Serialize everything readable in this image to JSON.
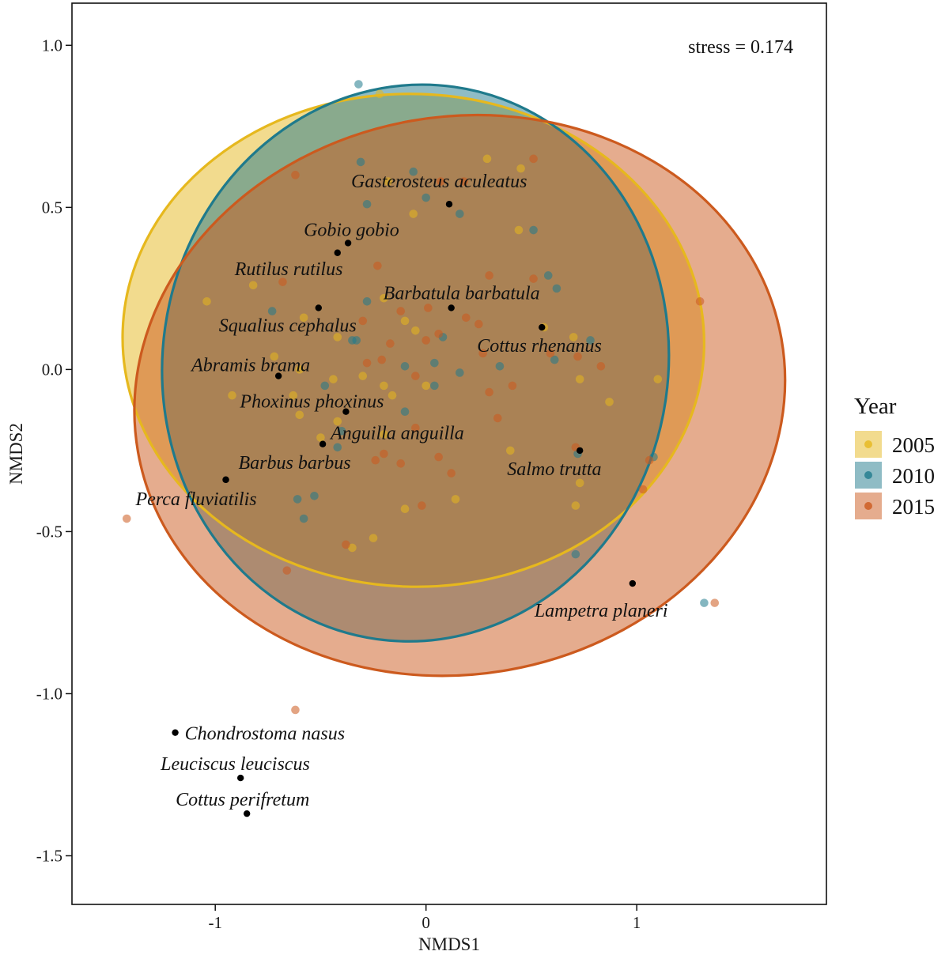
{
  "chart_data": {
    "type": "scatter",
    "title": "",
    "xlabel": "NMDS1",
    "ylabel": "NMDS2",
    "xlim": [
      -1.68,
      1.9
    ],
    "ylim": [
      -1.65,
      1.13
    ],
    "xticks": [
      -1,
      0,
      1
    ],
    "xtick_labels": [
      "-1",
      "0",
      "1"
    ],
    "yticks": [
      1.0,
      0.5,
      0.0,
      -0.5,
      -1.0,
      -1.5
    ],
    "ytick_labels": [
      "1.0",
      "0.5",
      "0.0",
      "-0.5",
      "-1.0",
      "-1.5"
    ],
    "grid": false,
    "annotation": "stress = 0.174",
    "legend": {
      "title": "Year",
      "placement": "right",
      "entries": [
        "2005",
        "2010",
        "2015"
      ]
    },
    "colors": {
      "2005": "#E6B81E",
      "2010": "#1F7A8C",
      "2015": "#CC5A1E",
      "species": "#000000"
    },
    "ellipses": [
      {
        "name": "2005",
        "cx": -0.06,
        "cy": 0.09,
        "rx": 1.38,
        "ry": 0.76,
        "angle": -2
      },
      {
        "name": "2010",
        "cx": -0.05,
        "cy": 0.02,
        "rx": 1.2,
        "ry": 0.86,
        "angle": -8
      },
      {
        "name": "2015",
        "cx": 0.16,
        "cy": -0.08,
        "rx": 1.55,
        "ry": 0.86,
        "angle": 10
      }
    ],
    "species": [
      {
        "name": "Gasterosteus aculeatus",
        "x": 0.11,
        "y": 0.51
      },
      {
        "name": "Gobio gobio",
        "x": -0.37,
        "y": 0.39
      },
      {
        "name": "Rutilus rutilus",
        "x": -0.42,
        "y": 0.36
      },
      {
        "name": "Barbatula barbatula",
        "x": 0.12,
        "y": 0.19
      },
      {
        "name": "Squalius cephalus",
        "x": -0.51,
        "y": 0.19
      },
      {
        "name": "Cottus rhenanus",
        "x": 0.55,
        "y": 0.13
      },
      {
        "name": "Abramis brama",
        "x": -0.7,
        "y": -0.02
      },
      {
        "name": "Phoxinus phoxinus",
        "x": -0.38,
        "y": -0.13
      },
      {
        "name": "Anguilla anguilla",
        "x": -0.49,
        "y": -0.23
      },
      {
        "name": "Salmo trutta",
        "x": 0.73,
        "y": -0.25
      },
      {
        "name": "Barbus barbus",
        "x": -0.95,
        "y": -0.34
      },
      {
        "name": "Perca fluviatilis",
        "x": -0.95,
        "y": -0.34
      },
      {
        "name": "Lampetra planeri",
        "x": 0.98,
        "y": -0.66
      },
      {
        "name": "Chondrostoma nasus",
        "x": -1.19,
        "y": -1.12
      },
      {
        "name": "Leuciscus leuciscus",
        "x": -0.88,
        "y": -1.26
      },
      {
        "name": "Cottus perifretum",
        "x": -0.85,
        "y": -1.37
      }
    ],
    "series": [
      {
        "name": "2005",
        "points": [
          [
            -0.22,
            0.85
          ],
          [
            0.29,
            0.65
          ],
          [
            0.45,
            0.62
          ],
          [
            -0.18,
            0.58
          ],
          [
            -0.06,
            0.48
          ],
          [
            0.44,
            0.43
          ],
          [
            -1.04,
            0.21
          ],
          [
            -0.82,
            0.26
          ],
          [
            -0.2,
            0.22
          ],
          [
            -0.58,
            0.16
          ],
          [
            -0.1,
            0.15
          ],
          [
            0.56,
            0.13
          ],
          [
            -0.42,
            0.1
          ],
          [
            -0.05,
            0.12
          ],
          [
            0.7,
            0.1
          ],
          [
            -0.72,
            0.04
          ],
          [
            -0.6,
            0.0
          ],
          [
            -0.44,
            -0.03
          ],
          [
            -0.3,
            -0.02
          ],
          [
            0.0,
            -0.05
          ],
          [
            0.73,
            -0.03
          ],
          [
            1.1,
            -0.03
          ],
          [
            -0.92,
            -0.08
          ],
          [
            -0.63,
            -0.08
          ],
          [
            -0.2,
            -0.05
          ],
          [
            -0.16,
            -0.08
          ],
          [
            0.87,
            -0.1
          ],
          [
            -0.6,
            -0.14
          ],
          [
            -0.42,
            -0.16
          ],
          [
            -0.2,
            -0.2
          ],
          [
            -0.5,
            -0.21
          ],
          [
            0.4,
            -0.25
          ],
          [
            0.73,
            -0.35
          ],
          [
            -0.1,
            -0.43
          ],
          [
            0.14,
            -0.4
          ],
          [
            -0.25,
            -0.52
          ],
          [
            0.71,
            -0.42
          ],
          [
            -0.35,
            -0.55
          ]
        ]
      },
      {
        "name": "2010",
        "points": [
          [
            -0.32,
            0.88
          ],
          [
            -0.31,
            0.64
          ],
          [
            -0.28,
            0.51
          ],
          [
            -0.06,
            0.61
          ],
          [
            0.0,
            0.53
          ],
          [
            0.16,
            0.48
          ],
          [
            0.51,
            0.43
          ],
          [
            0.58,
            0.29
          ],
          [
            0.62,
            0.25
          ],
          [
            -0.73,
            0.18
          ],
          [
            -0.28,
            0.21
          ],
          [
            -0.35,
            0.09
          ],
          [
            -0.33,
            0.09
          ],
          [
            0.08,
            0.1
          ],
          [
            0.78,
            0.09
          ],
          [
            -0.1,
            0.01
          ],
          [
            0.04,
            0.02
          ],
          [
            0.16,
            -0.01
          ],
          [
            0.35,
            0.01
          ],
          [
            0.61,
            0.03
          ],
          [
            0.04,
            -0.05
          ],
          [
            -0.48,
            -0.05
          ],
          [
            -0.1,
            -0.13
          ],
          [
            -0.4,
            -0.19
          ],
          [
            -0.42,
            -0.24
          ],
          [
            -0.61,
            -0.4
          ],
          [
            -0.53,
            -0.39
          ],
          [
            -0.58,
            -0.46
          ],
          [
            0.71,
            -0.57
          ],
          [
            0.72,
            -0.26
          ],
          [
            1.32,
            -0.72
          ],
          [
            1.08,
            -0.27
          ]
        ]
      },
      {
        "name": "2015",
        "points": [
          [
            -0.62,
            0.6
          ],
          [
            0.51,
            0.65
          ],
          [
            0.07,
            0.58
          ],
          [
            0.18,
            0.58
          ],
          [
            -0.23,
            0.32
          ],
          [
            0.3,
            0.29
          ],
          [
            0.51,
            0.28
          ],
          [
            -0.68,
            0.27
          ],
          [
            -0.12,
            0.18
          ],
          [
            0.01,
            0.19
          ],
          [
            0.19,
            0.16
          ],
          [
            0.25,
            0.14
          ],
          [
            -0.3,
            0.15
          ],
          [
            -0.17,
            0.08
          ],
          [
            0.0,
            0.09
          ],
          [
            0.06,
            0.11
          ],
          [
            0.27,
            0.05
          ],
          [
            0.59,
            0.05
          ],
          [
            0.72,
            0.04
          ],
          [
            -0.21,
            0.03
          ],
          [
            -0.28,
            0.02
          ],
          [
            0.83,
            0.01
          ],
          [
            -0.05,
            -0.02
          ],
          [
            0.3,
            -0.07
          ],
          [
            0.41,
            -0.05
          ],
          [
            0.34,
            -0.15
          ],
          [
            -0.05,
            -0.18
          ],
          [
            -0.2,
            -0.26
          ],
          [
            -0.24,
            -0.28
          ],
          [
            -0.12,
            -0.29
          ],
          [
            0.06,
            -0.27
          ],
          [
            -0.02,
            -0.42
          ],
          [
            0.12,
            -0.32
          ],
          [
            1.06,
            -0.28
          ],
          [
            1.03,
            -0.37
          ],
          [
            0.71,
            -0.24
          ],
          [
            -0.38,
            -0.54
          ],
          [
            -0.66,
            -0.62
          ],
          [
            -1.42,
            -0.46
          ],
          [
            1.37,
            -0.72
          ],
          [
            1.3,
            0.21
          ],
          [
            -0.62,
            -1.05
          ]
        ]
      }
    ]
  }
}
